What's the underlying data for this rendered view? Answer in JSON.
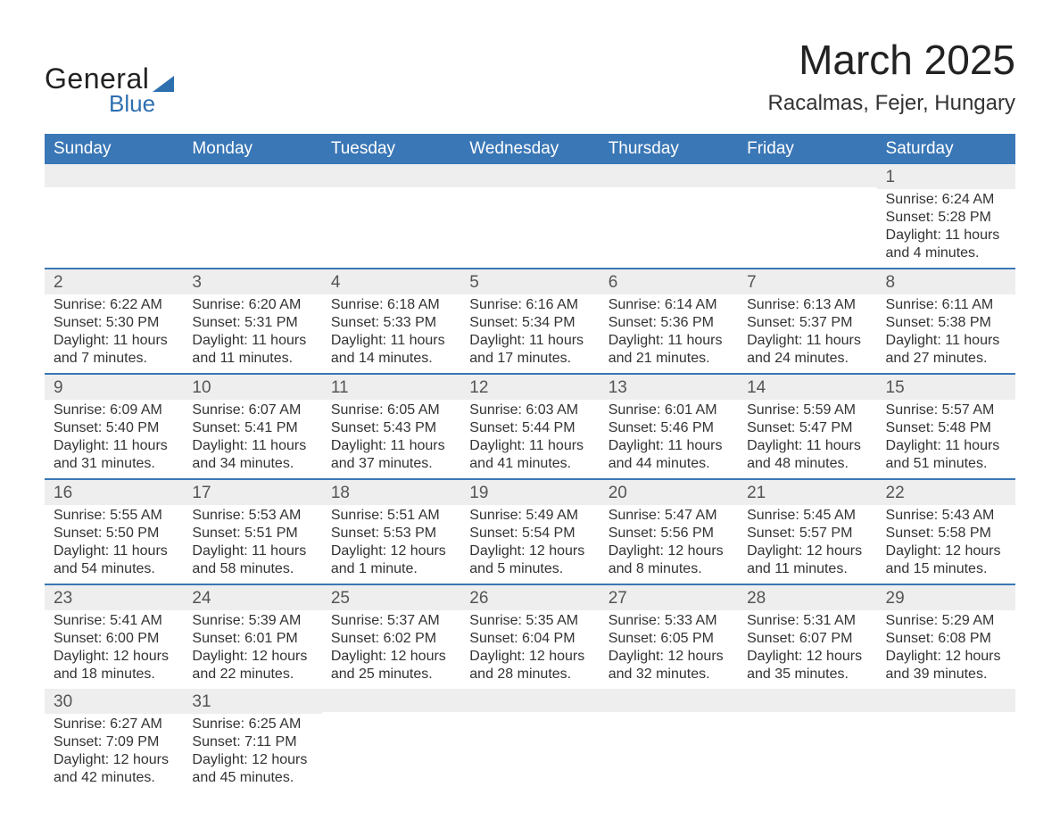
{
  "logo": {
    "text1": "General",
    "text2": "Blue",
    "color": "#2e6fb0"
  },
  "title": "March 2025",
  "location": "Racalmas, Fejer, Hungary",
  "columns": [
    "Sunday",
    "Monday",
    "Tuesday",
    "Wednesday",
    "Thursday",
    "Friday",
    "Saturday"
  ],
  "colors": {
    "header_bg": "#3a77b6",
    "header_fg": "#ffffff",
    "row_sep": "#3a77b6",
    "daynum_bg": "#eeeeee",
    "text": "#333333"
  },
  "weeks": [
    [
      null,
      null,
      null,
      null,
      null,
      null,
      {
        "n": "1",
        "sunrise": "6:24 AM",
        "sunset": "5:28 PM",
        "daylight": "11 hours and 4 minutes."
      }
    ],
    [
      {
        "n": "2",
        "sunrise": "6:22 AM",
        "sunset": "5:30 PM",
        "daylight": "11 hours and 7 minutes."
      },
      {
        "n": "3",
        "sunrise": "6:20 AM",
        "sunset": "5:31 PM",
        "daylight": "11 hours and 11 minutes."
      },
      {
        "n": "4",
        "sunrise": "6:18 AM",
        "sunset": "5:33 PM",
        "daylight": "11 hours and 14 minutes."
      },
      {
        "n": "5",
        "sunrise": "6:16 AM",
        "sunset": "5:34 PM",
        "daylight": "11 hours and 17 minutes."
      },
      {
        "n": "6",
        "sunrise": "6:14 AM",
        "sunset": "5:36 PM",
        "daylight": "11 hours and 21 minutes."
      },
      {
        "n": "7",
        "sunrise": "6:13 AM",
        "sunset": "5:37 PM",
        "daylight": "11 hours and 24 minutes."
      },
      {
        "n": "8",
        "sunrise": "6:11 AM",
        "sunset": "5:38 PM",
        "daylight": "11 hours and 27 minutes."
      }
    ],
    [
      {
        "n": "9",
        "sunrise": "6:09 AM",
        "sunset": "5:40 PM",
        "daylight": "11 hours and 31 minutes."
      },
      {
        "n": "10",
        "sunrise": "6:07 AM",
        "sunset": "5:41 PM",
        "daylight": "11 hours and 34 minutes."
      },
      {
        "n": "11",
        "sunrise": "6:05 AM",
        "sunset": "5:43 PM",
        "daylight": "11 hours and 37 minutes."
      },
      {
        "n": "12",
        "sunrise": "6:03 AM",
        "sunset": "5:44 PM",
        "daylight": "11 hours and 41 minutes."
      },
      {
        "n": "13",
        "sunrise": "6:01 AM",
        "sunset": "5:46 PM",
        "daylight": "11 hours and 44 minutes."
      },
      {
        "n": "14",
        "sunrise": "5:59 AM",
        "sunset": "5:47 PM",
        "daylight": "11 hours and 48 minutes."
      },
      {
        "n": "15",
        "sunrise": "5:57 AM",
        "sunset": "5:48 PM",
        "daylight": "11 hours and 51 minutes."
      }
    ],
    [
      {
        "n": "16",
        "sunrise": "5:55 AM",
        "sunset": "5:50 PM",
        "daylight": "11 hours and 54 minutes."
      },
      {
        "n": "17",
        "sunrise": "5:53 AM",
        "sunset": "5:51 PM",
        "daylight": "11 hours and 58 minutes."
      },
      {
        "n": "18",
        "sunrise": "5:51 AM",
        "sunset": "5:53 PM",
        "daylight": "12 hours and 1 minute."
      },
      {
        "n": "19",
        "sunrise": "5:49 AM",
        "sunset": "5:54 PM",
        "daylight": "12 hours and 5 minutes."
      },
      {
        "n": "20",
        "sunrise": "5:47 AM",
        "sunset": "5:56 PM",
        "daylight": "12 hours and 8 minutes."
      },
      {
        "n": "21",
        "sunrise": "5:45 AM",
        "sunset": "5:57 PM",
        "daylight": "12 hours and 11 minutes."
      },
      {
        "n": "22",
        "sunrise": "5:43 AM",
        "sunset": "5:58 PM",
        "daylight": "12 hours and 15 minutes."
      }
    ],
    [
      {
        "n": "23",
        "sunrise": "5:41 AM",
        "sunset": "6:00 PM",
        "daylight": "12 hours and 18 minutes."
      },
      {
        "n": "24",
        "sunrise": "5:39 AM",
        "sunset": "6:01 PM",
        "daylight": "12 hours and 22 minutes."
      },
      {
        "n": "25",
        "sunrise": "5:37 AM",
        "sunset": "6:02 PM",
        "daylight": "12 hours and 25 minutes."
      },
      {
        "n": "26",
        "sunrise": "5:35 AM",
        "sunset": "6:04 PM",
        "daylight": "12 hours and 28 minutes."
      },
      {
        "n": "27",
        "sunrise": "5:33 AM",
        "sunset": "6:05 PM",
        "daylight": "12 hours and 32 minutes."
      },
      {
        "n": "28",
        "sunrise": "5:31 AM",
        "sunset": "6:07 PM",
        "daylight": "12 hours and 35 minutes."
      },
      {
        "n": "29",
        "sunrise": "5:29 AM",
        "sunset": "6:08 PM",
        "daylight": "12 hours and 39 minutes."
      }
    ],
    [
      {
        "n": "30",
        "sunrise": "6:27 AM",
        "sunset": "7:09 PM",
        "daylight": "12 hours and 42 minutes."
      },
      {
        "n": "31",
        "sunrise": "6:25 AM",
        "sunset": "7:11 PM",
        "daylight": "12 hours and 45 minutes."
      },
      null,
      null,
      null,
      null,
      null
    ]
  ],
  "labels": {
    "sunrise": "Sunrise:",
    "sunset": "Sunset:",
    "daylight": "Daylight:"
  }
}
